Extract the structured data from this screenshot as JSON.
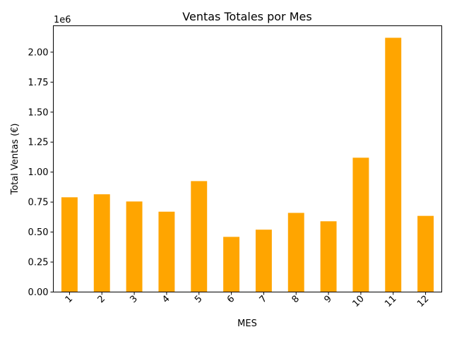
{
  "chart_data": {
    "type": "bar",
    "title": "Ventas Totales por Mes",
    "xlabel": "MES",
    "ylabel": "Total Ventas (€)",
    "y_offset_label": "1e6",
    "categories": [
      "1",
      "2",
      "3",
      "4",
      "5",
      "6",
      "7",
      "8",
      "9",
      "10",
      "11",
      "12"
    ],
    "values": [
      0.79,
      0.815,
      0.755,
      0.67,
      0.925,
      0.46,
      0.52,
      0.66,
      0.59,
      1.12,
      2.12,
      0.635
    ],
    "value_scale": 1000000,
    "ylim": [
      0,
      2.22
    ],
    "yticks": [
      0.0,
      0.25,
      0.5,
      0.75,
      1.0,
      1.25,
      1.5,
      1.75,
      2.0
    ],
    "ytick_labels": [
      "0.00",
      "0.25",
      "0.50",
      "0.75",
      "1.00",
      "1.25",
      "1.50",
      "1.75",
      "2.00"
    ],
    "bar_color": "#ffa500",
    "grid": false,
    "legend": "none"
  }
}
